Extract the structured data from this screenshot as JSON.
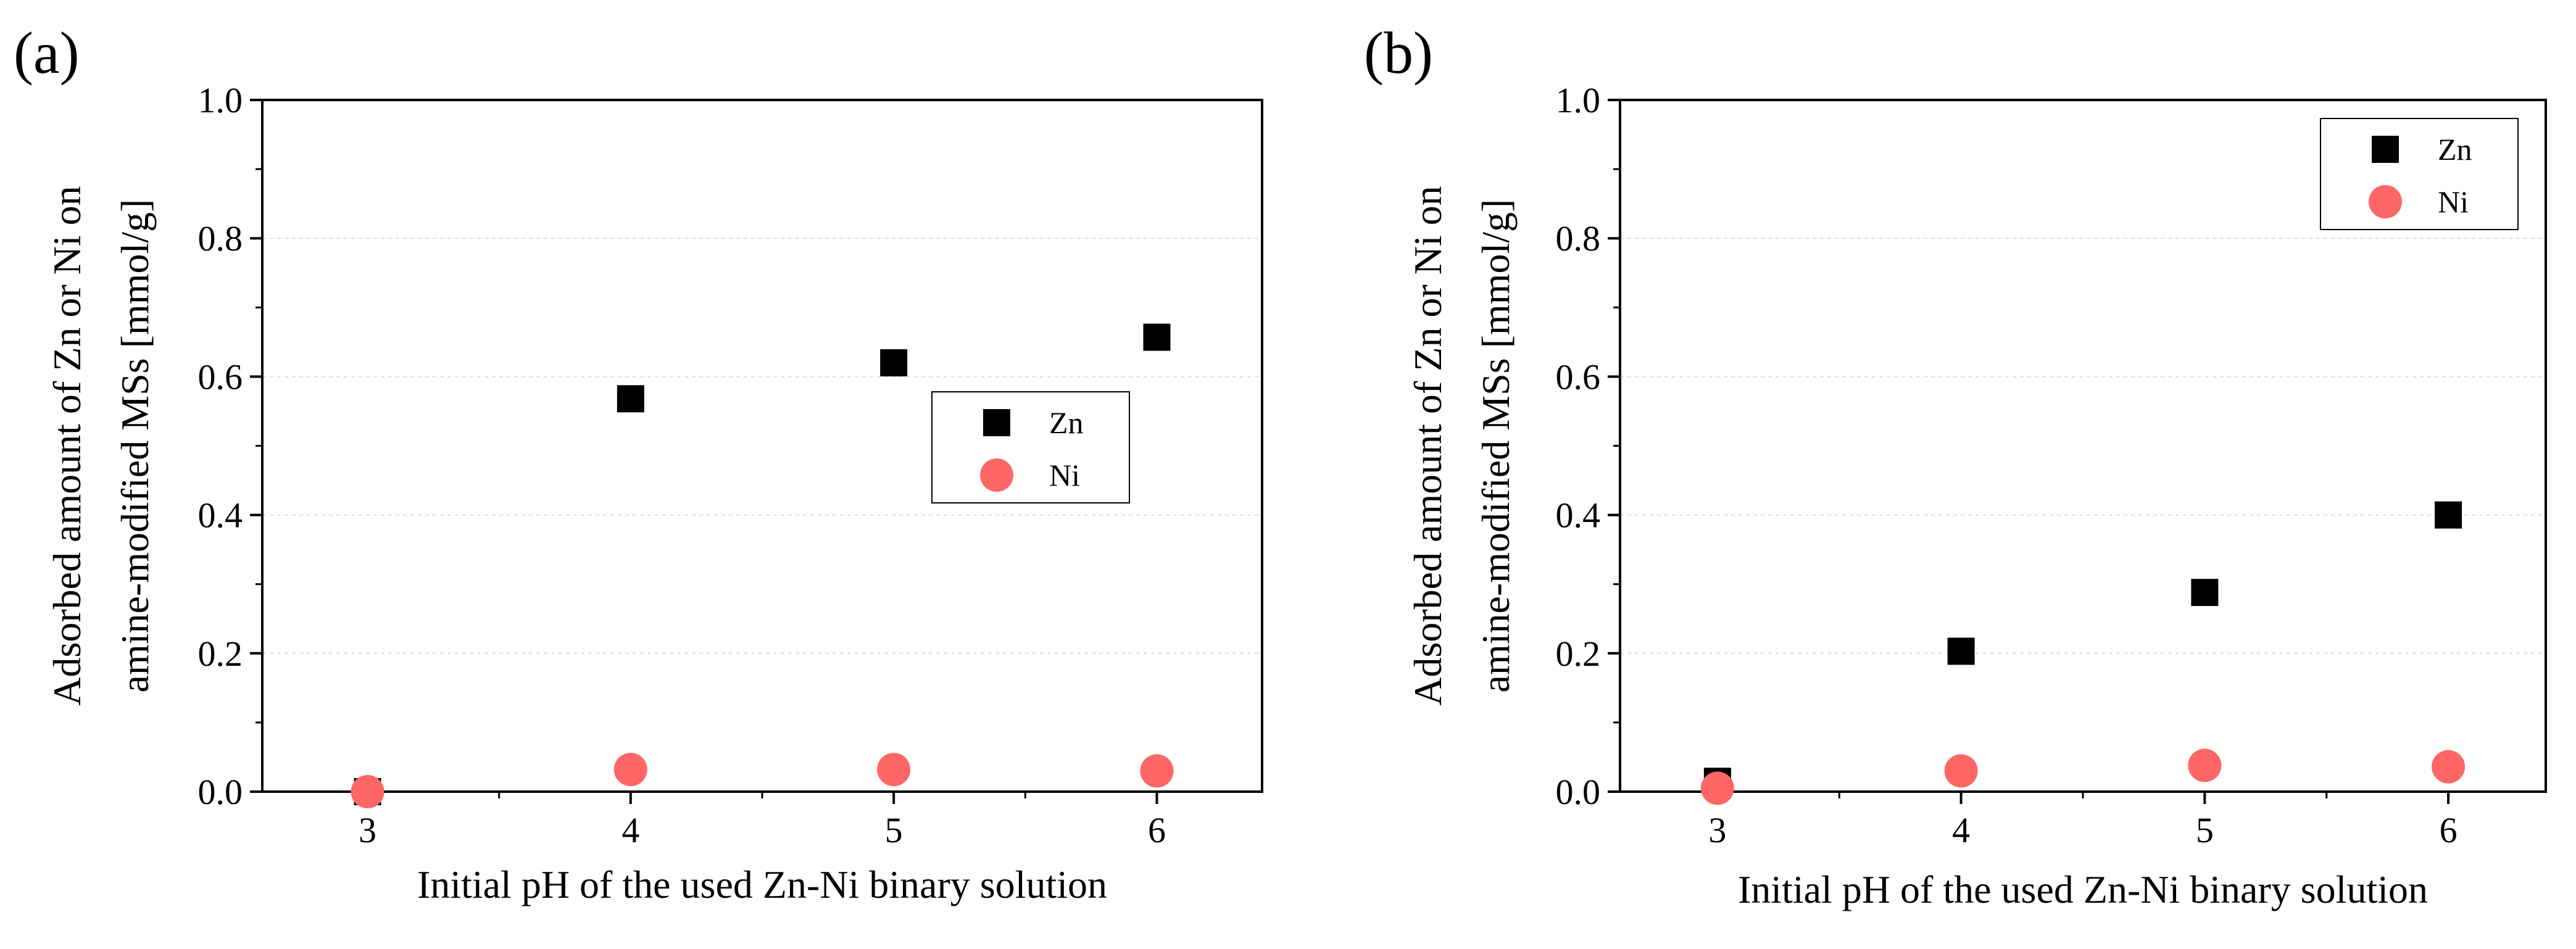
{
  "chart_data": [
    {
      "panel": "(a)",
      "type": "scatter",
      "xlabel": "Initial pH of the used Zn-Ni binary solution",
      "ylabel_lines": [
        "Adsorbed amount of Zn or Ni on",
        "amine-modified MSs [mmol/g]"
      ],
      "x_ticks": [
        "3",
        "4",
        "5",
        "6"
      ],
      "y_ticks": [
        "0.0",
        "0.2",
        "0.4",
        "0.6",
        "0.8",
        "1.0"
      ],
      "xlim": [
        2.6,
        6.4
      ],
      "ylim": [
        0,
        1.0
      ],
      "grid": true,
      "legend_position": "center-right",
      "series": [
        {
          "name": "Zn",
          "marker": "square",
          "color": "#000000",
          "x": [
            3,
            4,
            5,
            6
          ],
          "y": [
            0.0,
            0.568,
            0.62,
            0.657
          ]
        },
        {
          "name": "Ni",
          "marker": "circle",
          "color": "#ff6666",
          "x": [
            3,
            4,
            5,
            6
          ],
          "y": [
            0.0,
            0.032,
            0.032,
            0.03
          ]
        }
      ]
    },
    {
      "panel": "(b)",
      "type": "scatter",
      "xlabel": "Initial pH of the used Zn-Ni binary solution",
      "ylabel_lines": [
        "Adsorbed amount of Zn or Ni on",
        "amine-modified MSs [mmol/g]"
      ],
      "x_ticks": [
        "3",
        "4",
        "5",
        "6"
      ],
      "y_ticks": [
        "0.0",
        "0.2",
        "0.4",
        "0.6",
        "0.8",
        "1.0"
      ],
      "xlim": [
        2.6,
        6.4
      ],
      "ylim": [
        0,
        1.0
      ],
      "grid": true,
      "legend_position": "top-right",
      "series": [
        {
          "name": "Zn",
          "marker": "square",
          "color": "#000000",
          "x": [
            3,
            4,
            5,
            6
          ],
          "y": [
            0.015,
            0.203,
            0.288,
            0.4
          ]
        },
        {
          "name": "Ni",
          "marker": "circle",
          "color": "#ff6666",
          "x": [
            3,
            4,
            5,
            6
          ],
          "y": [
            0.005,
            0.03,
            0.038,
            0.036
          ]
        }
      ]
    }
  ]
}
